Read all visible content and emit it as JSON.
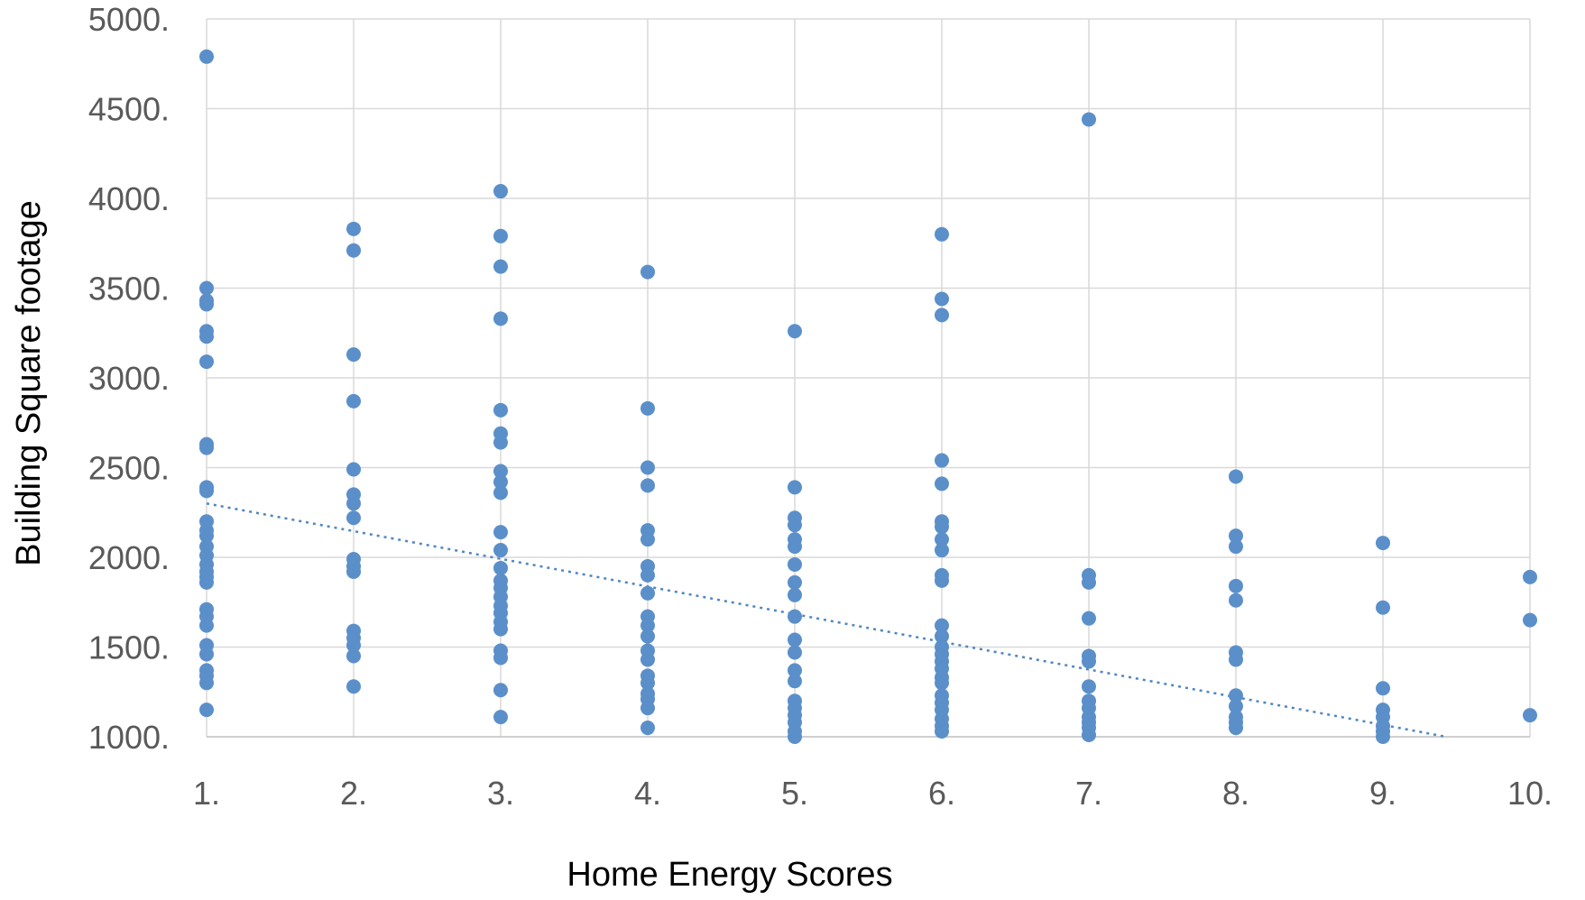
{
  "chart_data": {
    "type": "scatter",
    "xlabel": "Home Energy Scores",
    "ylabel": "Building Square footage",
    "xlim": [
      1,
      10
    ],
    "ylim": [
      1000,
      5000
    ],
    "x_ticks": [
      1,
      2,
      3,
      4,
      5,
      6,
      7,
      8,
      9,
      10
    ],
    "x_tick_labels": [
      "1.",
      "2.",
      "3.",
      "4.",
      "5.",
      "6.",
      "7.",
      "8.",
      "9.",
      "10."
    ],
    "y_ticks": [
      1000,
      1500,
      2000,
      2500,
      3000,
      3500,
      4000,
      4500,
      5000
    ],
    "y_tick_labels": [
      "1000.",
      "1500.",
      "2000.",
      "2500.",
      "3000.",
      "3500.",
      "4000.",
      "4500.",
      "5000."
    ],
    "grid": true,
    "legend": "none",
    "colors": {
      "points": "#5b8fc9",
      "trendline": "#4f86c0",
      "grid": "#d9d9d9"
    },
    "series": [
      {
        "points": [
          [
            1,
            4790
          ],
          [
            1,
            3500
          ],
          [
            1,
            3430
          ],
          [
            1,
            3410
          ],
          [
            1,
            3260
          ],
          [
            1,
            3230
          ],
          [
            1,
            3090
          ],
          [
            1,
            2630
          ],
          [
            1,
            2610
          ],
          [
            1,
            2390
          ],
          [
            1,
            2370
          ],
          [
            1,
            2200
          ],
          [
            1,
            2150
          ],
          [
            1,
            2120
          ],
          [
            1,
            2060
          ],
          [
            1,
            2010
          ],
          [
            1,
            1960
          ],
          [
            1,
            1920
          ],
          [
            1,
            1890
          ],
          [
            1,
            1860
          ],
          [
            1,
            1710
          ],
          [
            1,
            1670
          ],
          [
            1,
            1620
          ],
          [
            1,
            1510
          ],
          [
            1,
            1460
          ],
          [
            1,
            1370
          ],
          [
            1,
            1340
          ],
          [
            1,
            1300
          ],
          [
            1,
            1150
          ],
          [
            2,
            3830
          ],
          [
            2,
            3710
          ],
          [
            2,
            3130
          ],
          [
            2,
            2870
          ],
          [
            2,
            2490
          ],
          [
            2,
            2350
          ],
          [
            2,
            2300
          ],
          [
            2,
            2220
          ],
          [
            2,
            1990
          ],
          [
            2,
            1950
          ],
          [
            2,
            1920
          ],
          [
            2,
            1590
          ],
          [
            2,
            1550
          ],
          [
            2,
            1510
          ],
          [
            2,
            1450
          ],
          [
            2,
            1280
          ],
          [
            3,
            4040
          ],
          [
            3,
            3790
          ],
          [
            3,
            3620
          ],
          [
            3,
            3330
          ],
          [
            3,
            2820
          ],
          [
            3,
            2690
          ],
          [
            3,
            2640
          ],
          [
            3,
            2480
          ],
          [
            3,
            2420
          ],
          [
            3,
            2360
          ],
          [
            3,
            2140
          ],
          [
            3,
            2040
          ],
          [
            3,
            1940
          ],
          [
            3,
            1870
          ],
          [
            3,
            1830
          ],
          [
            3,
            1780
          ],
          [
            3,
            1730
          ],
          [
            3,
            1690
          ],
          [
            3,
            1640
          ],
          [
            3,
            1600
          ],
          [
            3,
            1480
          ],
          [
            3,
            1440
          ],
          [
            3,
            1260
          ],
          [
            3,
            1110
          ],
          [
            4,
            3590
          ],
          [
            4,
            2830
          ],
          [
            4,
            2500
          ],
          [
            4,
            2400
          ],
          [
            4,
            2150
          ],
          [
            4,
            2100
          ],
          [
            4,
            1950
          ],
          [
            4,
            1900
          ],
          [
            4,
            1800
          ],
          [
            4,
            1670
          ],
          [
            4,
            1620
          ],
          [
            4,
            1560
          ],
          [
            4,
            1480
          ],
          [
            4,
            1430
          ],
          [
            4,
            1340
          ],
          [
            4,
            1300
          ],
          [
            4,
            1240
          ],
          [
            4,
            1210
          ],
          [
            4,
            1160
          ],
          [
            4,
            1050
          ],
          [
            5,
            3260
          ],
          [
            5,
            2390
          ],
          [
            5,
            2220
          ],
          [
            5,
            2180
          ],
          [
            5,
            2100
          ],
          [
            5,
            2060
          ],
          [
            5,
            1960
          ],
          [
            5,
            1860
          ],
          [
            5,
            1790
          ],
          [
            5,
            1670
          ],
          [
            5,
            1540
          ],
          [
            5,
            1470
          ],
          [
            5,
            1370
          ],
          [
            5,
            1310
          ],
          [
            5,
            1200
          ],
          [
            5,
            1160
          ],
          [
            5,
            1120
          ],
          [
            5,
            1080
          ],
          [
            5,
            1030
          ],
          [
            5,
            1000
          ],
          [
            6,
            3800
          ],
          [
            6,
            3440
          ],
          [
            6,
            3350
          ],
          [
            6,
            2540
          ],
          [
            6,
            2410
          ],
          [
            6,
            2200
          ],
          [
            6,
            2170
          ],
          [
            6,
            2100
          ],
          [
            6,
            2040
          ],
          [
            6,
            1900
          ],
          [
            6,
            1870
          ],
          [
            6,
            1620
          ],
          [
            6,
            1560
          ],
          [
            6,
            1500
          ],
          [
            6,
            1460
          ],
          [
            6,
            1420
          ],
          [
            6,
            1380
          ],
          [
            6,
            1330
          ],
          [
            6,
            1300
          ],
          [
            6,
            1230
          ],
          [
            6,
            1190
          ],
          [
            6,
            1150
          ],
          [
            6,
            1100
          ],
          [
            6,
            1060
          ],
          [
            6,
            1030
          ],
          [
            7,
            4440
          ],
          [
            7,
            1900
          ],
          [
            7,
            1860
          ],
          [
            7,
            1660
          ],
          [
            7,
            1450
          ],
          [
            7,
            1420
          ],
          [
            7,
            1280
          ],
          [
            7,
            1200
          ],
          [
            7,
            1160
          ],
          [
            7,
            1110
          ],
          [
            7,
            1080
          ],
          [
            7,
            1050
          ],
          [
            7,
            1010
          ],
          [
            8,
            2450
          ],
          [
            8,
            2120
          ],
          [
            8,
            2060
          ],
          [
            8,
            1840
          ],
          [
            8,
            1760
          ],
          [
            8,
            1470
          ],
          [
            8,
            1430
          ],
          [
            8,
            1230
          ],
          [
            8,
            1170
          ],
          [
            8,
            1110
          ],
          [
            8,
            1080
          ],
          [
            8,
            1050
          ],
          [
            9,
            2080
          ],
          [
            9,
            1720
          ],
          [
            9,
            1270
          ],
          [
            9,
            1150
          ],
          [
            9,
            1110
          ],
          [
            9,
            1060
          ],
          [
            9,
            1030
          ],
          [
            9,
            1000
          ],
          [
            10,
            1890
          ],
          [
            10,
            1650
          ],
          [
            10,
            1120
          ]
        ]
      }
    ],
    "trendline": {
      "type": "linear",
      "from": [
        1,
        2300
      ],
      "to": [
        9.43,
        1000
      ],
      "style": "dotted"
    }
  }
}
